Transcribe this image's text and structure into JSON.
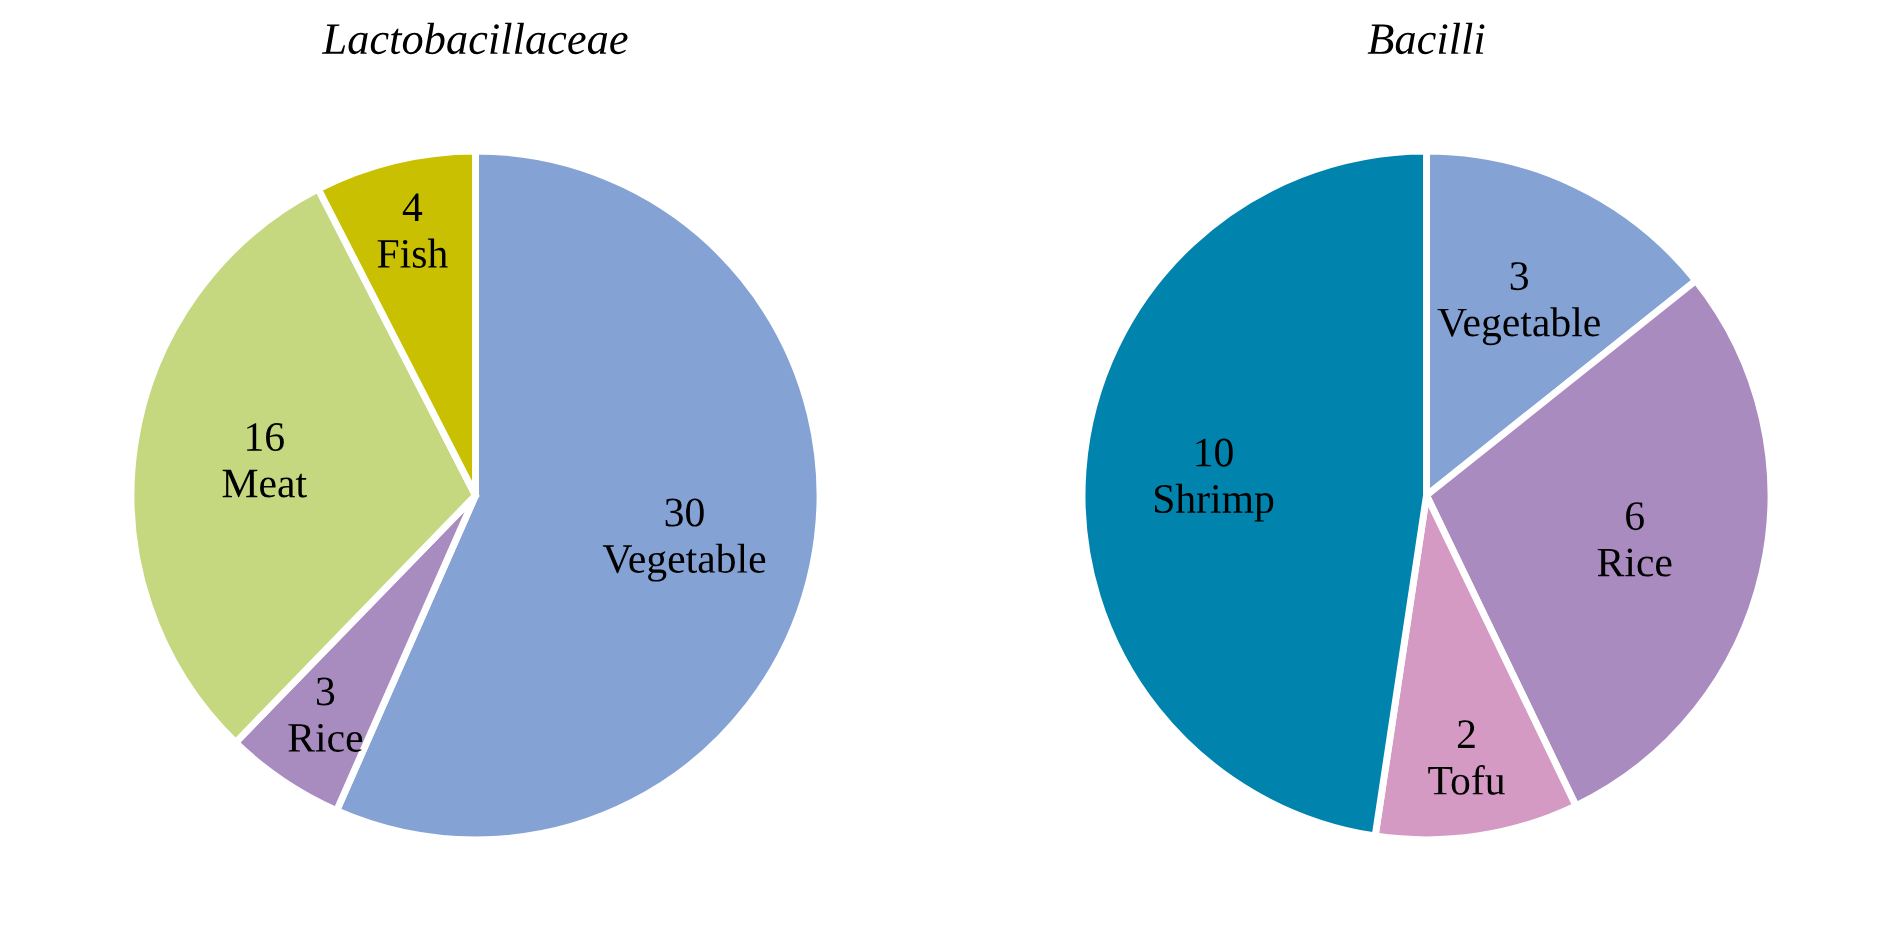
{
  "chart_data": [
    {
      "type": "pie",
      "title": "Lactobacillaceae",
      "categories": [
        "Vegetable",
        "Rice",
        "Meat",
        "Fish"
      ],
      "values": [
        30,
        3,
        16,
        4
      ],
      "colors": [
        "#84a2d4",
        "#a88bbf",
        "#c5d87f",
        "#c8c000"
      ],
      "data_labels": true
    },
    {
      "type": "pie",
      "title": "Bacilli",
      "categories": [
        "Vegetable",
        "Rice",
        "Tofu",
        "Shrimp"
      ],
      "values": [
        3,
        6,
        2,
        10
      ],
      "colors": [
        "#84a2d4",
        "#a98bbf",
        "#d49ac4",
        "#0083ad"
      ],
      "data_labels": true
    }
  ]
}
